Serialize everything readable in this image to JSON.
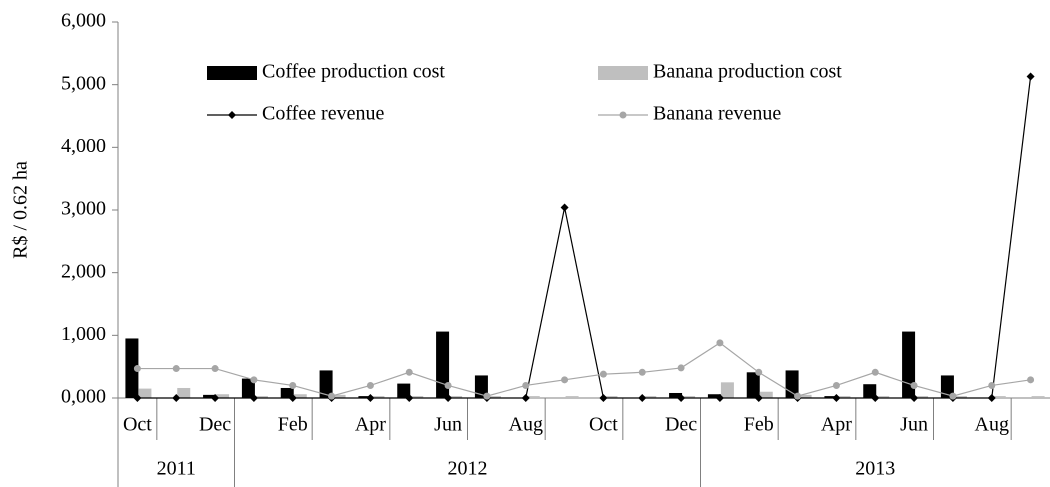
{
  "chart_data": {
    "type": "bar",
    "y_label": "R$ / 0.62 ha",
    "categories": [
      "Oct",
      null,
      "Dec",
      null,
      "Feb",
      null,
      "Apr",
      null,
      "Jun",
      null,
      "Aug",
      null,
      "Oct",
      null,
      "Dec",
      null,
      "Feb",
      null,
      "Apr",
      null,
      "Jun",
      null,
      "Aug",
      null
    ],
    "x_groups": [
      {
        "label": "2011",
        "count": 3
      },
      {
        "label": "2012",
        "count": 12
      },
      {
        "label": "2013",
        "count": 9
      }
    ],
    "ylim": [
      0,
      6000
    ],
    "yticks": [
      {
        "value": 0,
        "label": "0,000"
      },
      {
        "value": 1000,
        "label": "1,000"
      },
      {
        "value": 2000,
        "label": "2,000"
      },
      {
        "value": 3000,
        "label": "3,000"
      },
      {
        "value": 4000,
        "label": "4,000"
      },
      {
        "value": 5000,
        "label": "5,000"
      },
      {
        "value": 6000,
        "label": "6,000"
      }
    ],
    "series": [
      {
        "name": "Coffee production cost",
        "type": "bar",
        "color": "#000000",
        "values": [
          950,
          0,
          50,
          310,
          160,
          440,
          30,
          230,
          1060,
          360,
          0,
          0,
          0,
          0,
          80,
          60,
          410,
          440,
          30,
          220,
          1060,
          360,
          0,
          0
        ]
      },
      {
        "name": "Banana production cost",
        "type": "bar",
        "color": "#bfbfbf",
        "values": [
          150,
          160,
          60,
          30,
          60,
          50,
          30,
          30,
          30,
          30,
          30,
          30,
          30,
          30,
          30,
          250,
          100,
          50,
          30,
          30,
          30,
          30,
          30,
          30
        ]
      },
      {
        "name": "Coffee revenue",
        "type": "line",
        "color": "#000000",
        "values": [
          0,
          0,
          0,
          0,
          0,
          0,
          0,
          0,
          0,
          0,
          0,
          3040,
          0,
          0,
          0,
          0,
          0,
          0,
          0,
          0,
          0,
          0,
          0,
          5130
        ]
      },
      {
        "name": "Banana revenue",
        "type": "line",
        "color": "#a6a6a6",
        "values": [
          470,
          470,
          470,
          290,
          200,
          30,
          200,
          410,
          200,
          30,
          200,
          290,
          380,
          410,
          480,
          880,
          410,
          30,
          200,
          410,
          200,
          30,
          200,
          290
        ]
      }
    ]
  }
}
